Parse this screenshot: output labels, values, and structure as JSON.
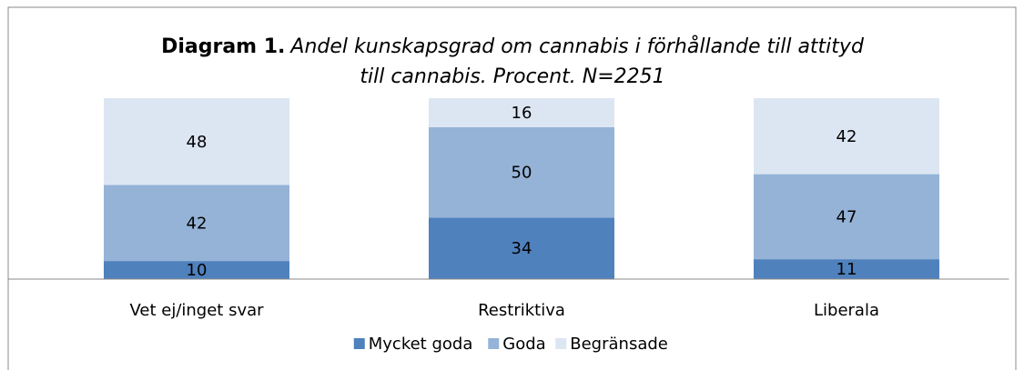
{
  "chart_data": {
    "type": "stacked_bar",
    "title": "Diagram 1.",
    "subtitle": [
      "Andel kunskapsgrad om cannabis i förhållande till attityd",
      "till cannabis. Procent. N=2251"
    ],
    "categories": [
      "Vet ej/inget svar",
      "Restriktiva",
      "Liberala"
    ],
    "series": [
      {
        "name": "Mycket goda",
        "color": "#4f81bd",
        "values": [
          10,
          34,
          11
        ]
      },
      {
        "name": "Goda",
        "color": "#95b3d7",
        "values": [
          42,
          50,
          47
        ]
      },
      {
        "name": "Begränsade",
        "color": "#dce6f2",
        "values": [
          48,
          16,
          42
        ]
      }
    ],
    "ylim": [
      0,
      100
    ],
    "legend": "bottom"
  }
}
